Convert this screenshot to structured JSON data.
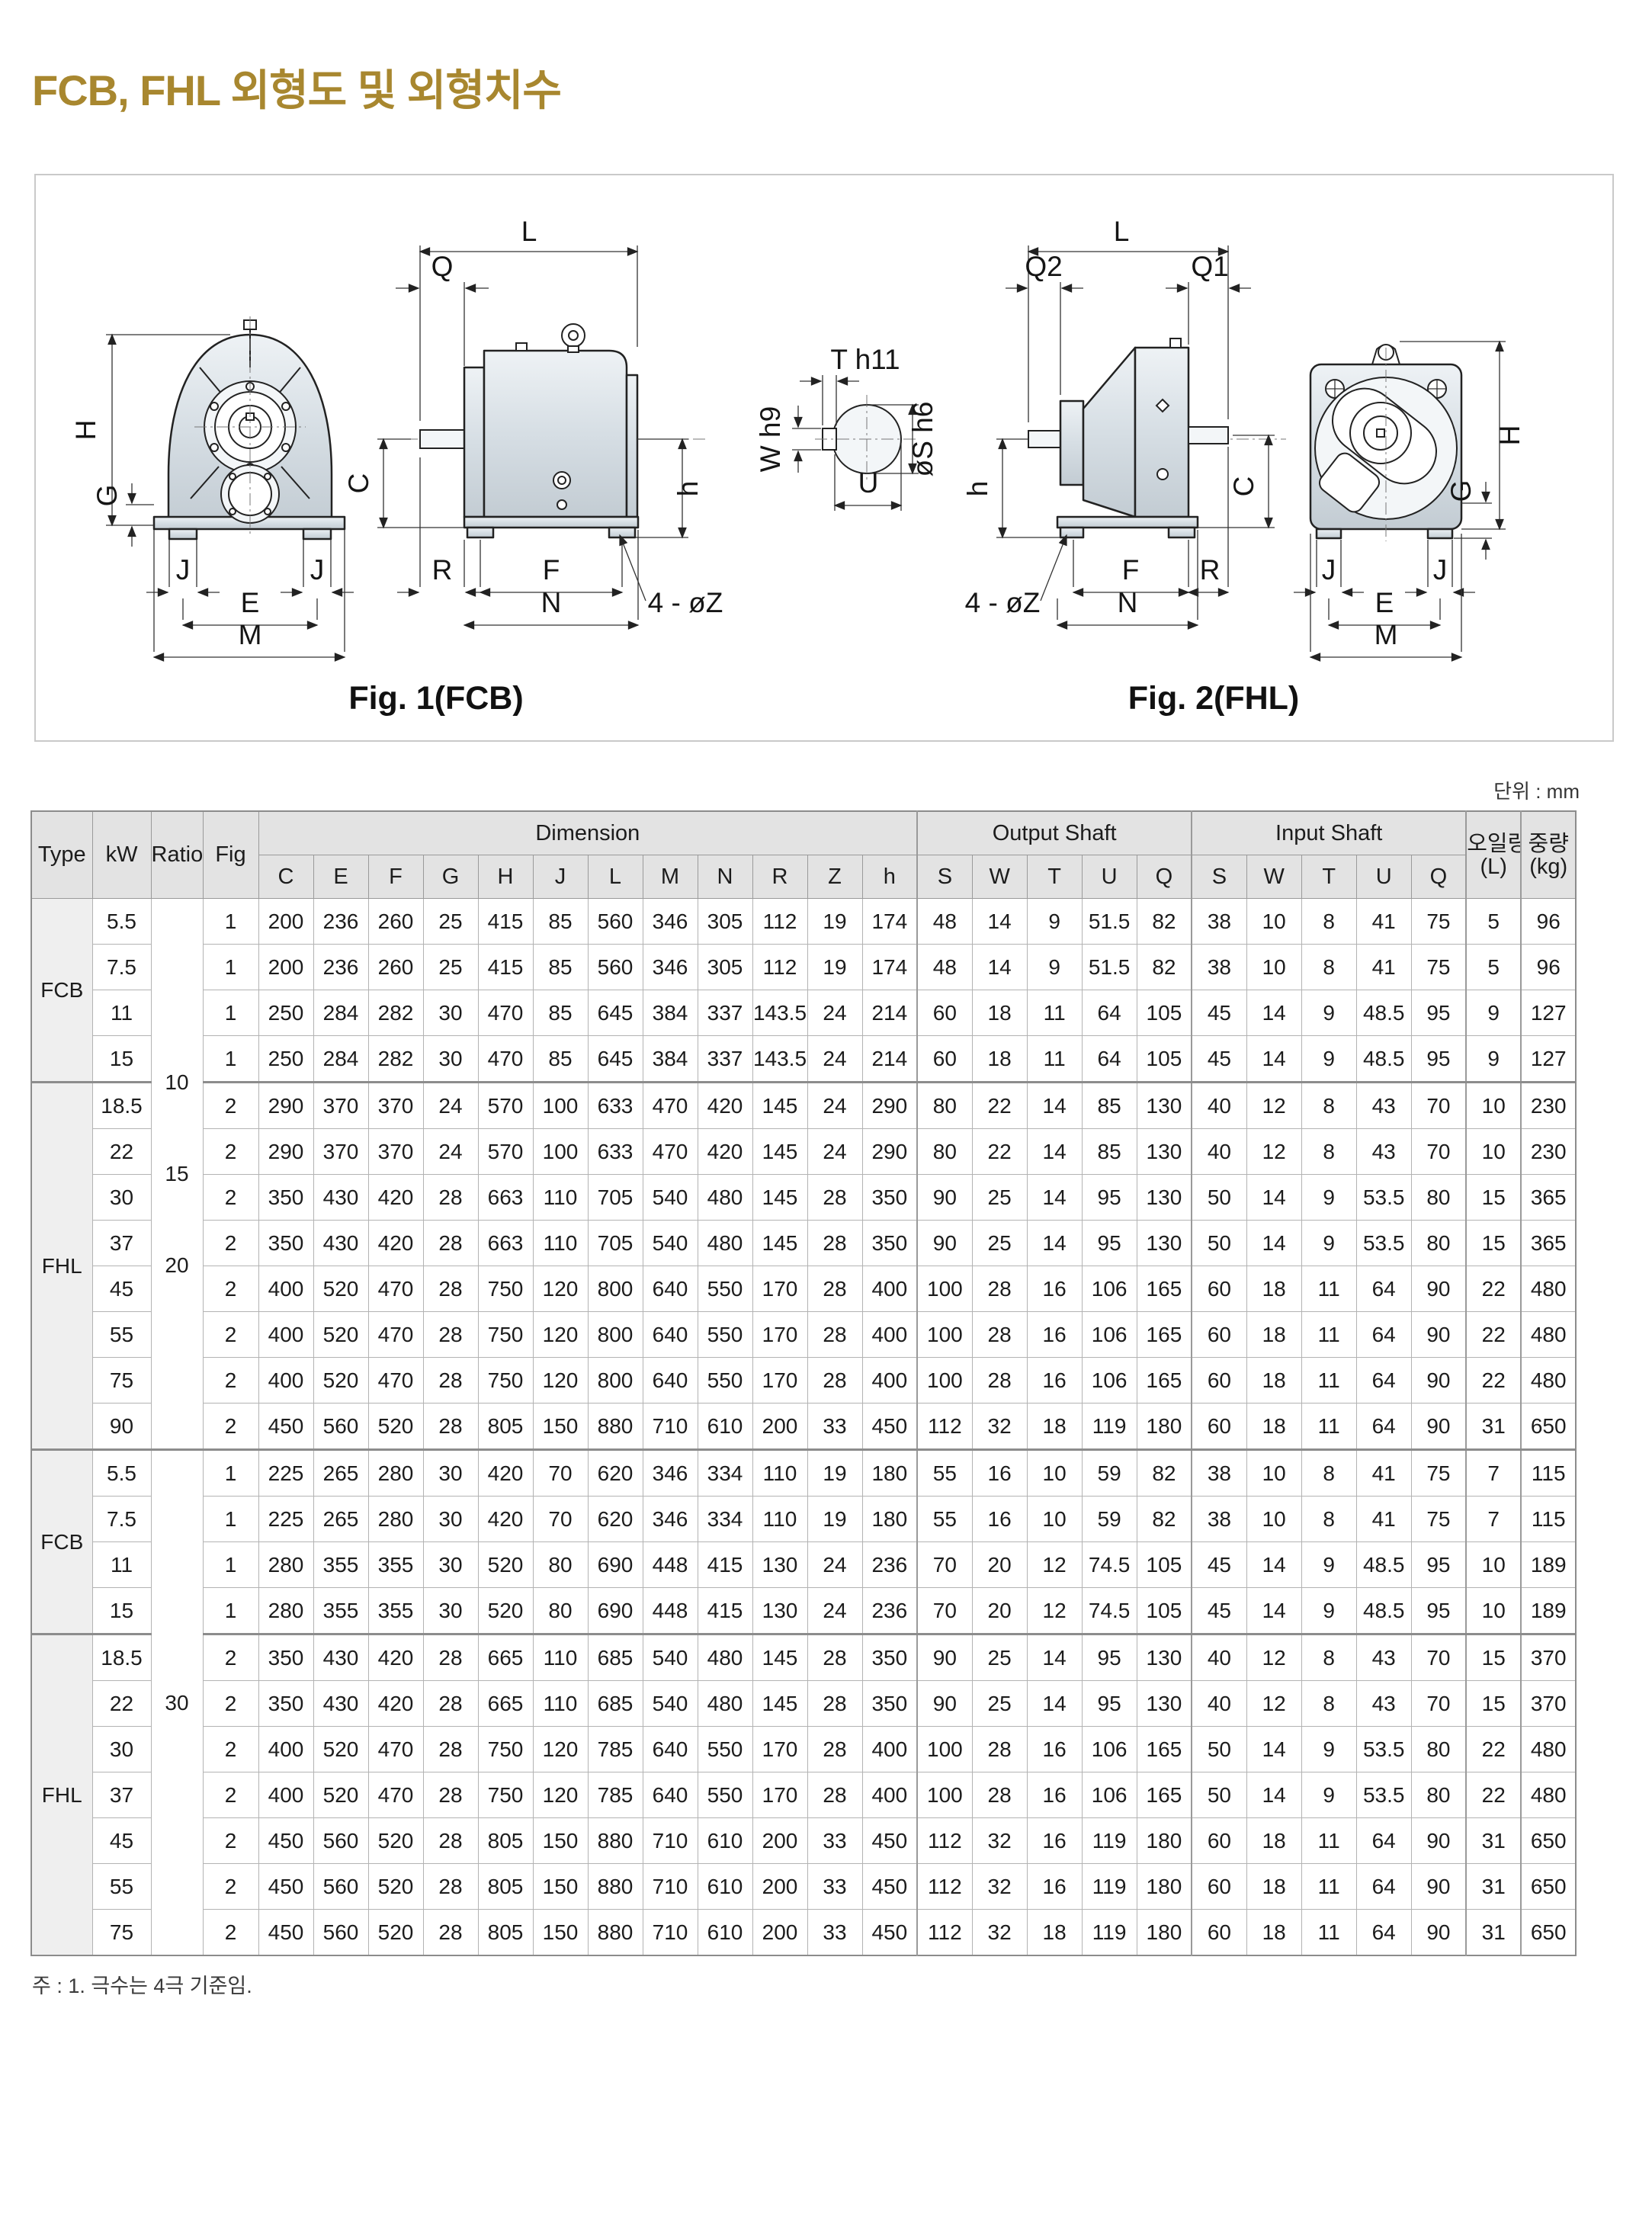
{
  "page": {
    "title": "FCB, FHL 외형도 및 외형치수",
    "unit_note": "단위 : mm",
    "footnote": "주 : 1. 극수는 4극 기준임."
  },
  "figures": {
    "fig1": {
      "caption": "Fig. 1(FCB)",
      "labels": {
        "H": "H",
        "G": "G",
        "J": "J",
        "E": "E",
        "M": "M",
        "L": "L",
        "Q": "Q",
        "C": "C",
        "h": "h",
        "R": "R",
        "F": "F",
        "N": "N",
        "holes": "4 - øZ"
      }
    },
    "shaft_detail": {
      "T": "T h11",
      "W": "W h9",
      "S": "øS h6",
      "U": "U"
    },
    "fig2": {
      "caption": "Fig. 2(FHL)",
      "labels": {
        "L": "L",
        "Q2": "Q2",
        "Q1": "Q1",
        "C": "C",
        "h": "h",
        "R": "R",
        "F": "F",
        "N": "N",
        "H": "H",
        "G": "G",
        "J": "J",
        "E": "E",
        "M": "M",
        "holes": "4 - øZ"
      }
    }
  },
  "table": {
    "headers": {
      "type": "Type",
      "kw": "kW",
      "ratio": "Ratio",
      "fig": "Fig",
      "dimension_group": "Dimension",
      "output_group": "Output Shaft",
      "input_group": "Input Shaft",
      "dim_cols": [
        "C",
        "E",
        "F",
        "G",
        "H",
        "J",
        "L",
        "M",
        "N",
        "R",
        "Z",
        "h"
      ],
      "output_cols": [
        "S",
        "W",
        "T",
        "U",
        "Q"
      ],
      "input_cols": [
        "S",
        "W",
        "T",
        "U",
        "Q"
      ],
      "oil": {
        "line1": "오일량",
        "line2": "(L)"
      },
      "weight": {
        "line1": "중량",
        "line2": "(kg)"
      }
    },
    "type_groups": [
      {
        "label": "FCB",
        "rows": 4
      },
      {
        "label": "FHL",
        "rows": 8
      },
      {
        "label": "FCB",
        "rows": 4
      },
      {
        "label": "FHL",
        "rows": 7
      }
    ],
    "ratio_groups": [
      {
        "lines": [
          "10",
          "15",
          "20"
        ],
        "rows": 12
      },
      {
        "lines": [
          "30"
        ],
        "rows": 11
      }
    ],
    "section_breaks": [
      4,
      12,
      16
    ],
    "rows": [
      {
        "kw": "5.5",
        "fig": "1",
        "values": [
          "200",
          "236",
          "260",
          "25",
          "415",
          "85",
          "560",
          "346",
          "305",
          "112",
          "19",
          "174",
          "48",
          "14",
          "9",
          "51.5",
          "82",
          "38",
          "10",
          "8",
          "41",
          "75",
          "5",
          "96"
        ]
      },
      {
        "kw": "7.5",
        "fig": "1",
        "values": [
          "200",
          "236",
          "260",
          "25",
          "415",
          "85",
          "560",
          "346",
          "305",
          "112",
          "19",
          "174",
          "48",
          "14",
          "9",
          "51.5",
          "82",
          "38",
          "10",
          "8",
          "41",
          "75",
          "5",
          "96"
        ]
      },
      {
        "kw": "11",
        "fig": "1",
        "values": [
          "250",
          "284",
          "282",
          "30",
          "470",
          "85",
          "645",
          "384",
          "337",
          "143.5",
          "24",
          "214",
          "60",
          "18",
          "11",
          "64",
          "105",
          "45",
          "14",
          "9",
          "48.5",
          "95",
          "9",
          "127"
        ]
      },
      {
        "kw": "15",
        "fig": "1",
        "values": [
          "250",
          "284",
          "282",
          "30",
          "470",
          "85",
          "645",
          "384",
          "337",
          "143.5",
          "24",
          "214",
          "60",
          "18",
          "11",
          "64",
          "105",
          "45",
          "14",
          "9",
          "48.5",
          "95",
          "9",
          "127"
        ]
      },
      {
        "kw": "18.5",
        "fig": "2",
        "values": [
          "290",
          "370",
          "370",
          "24",
          "570",
          "100",
          "633",
          "470",
          "420",
          "145",
          "24",
          "290",
          "80",
          "22",
          "14",
          "85",
          "130",
          "40",
          "12",
          "8",
          "43",
          "70",
          "10",
          "230"
        ]
      },
      {
        "kw": "22",
        "fig": "2",
        "values": [
          "290",
          "370",
          "370",
          "24",
          "570",
          "100",
          "633",
          "470",
          "420",
          "145",
          "24",
          "290",
          "80",
          "22",
          "14",
          "85",
          "130",
          "40",
          "12",
          "8",
          "43",
          "70",
          "10",
          "230"
        ]
      },
      {
        "kw": "30",
        "fig": "2",
        "values": [
          "350",
          "430",
          "420",
          "28",
          "663",
          "110",
          "705",
          "540",
          "480",
          "145",
          "28",
          "350",
          "90",
          "25",
          "14",
          "95",
          "130",
          "50",
          "14",
          "9",
          "53.5",
          "80",
          "15",
          "365"
        ]
      },
      {
        "kw": "37",
        "fig": "2",
        "values": [
          "350",
          "430",
          "420",
          "28",
          "663",
          "110",
          "705",
          "540",
          "480",
          "145",
          "28",
          "350",
          "90",
          "25",
          "14",
          "95",
          "130",
          "50",
          "14",
          "9",
          "53.5",
          "80",
          "15",
          "365"
        ]
      },
      {
        "kw": "45",
        "fig": "2",
        "values": [
          "400",
          "520",
          "470",
          "28",
          "750",
          "120",
          "800",
          "640",
          "550",
          "170",
          "28",
          "400",
          "100",
          "28",
          "16",
          "106",
          "165",
          "60",
          "18",
          "11",
          "64",
          "90",
          "22",
          "480"
        ]
      },
      {
        "kw": "55",
        "fig": "2",
        "values": [
          "400",
          "520",
          "470",
          "28",
          "750",
          "120",
          "800",
          "640",
          "550",
          "170",
          "28",
          "400",
          "100",
          "28",
          "16",
          "106",
          "165",
          "60",
          "18",
          "11",
          "64",
          "90",
          "22",
          "480"
        ]
      },
      {
        "kw": "75",
        "fig": "2",
        "values": [
          "400",
          "520",
          "470",
          "28",
          "750",
          "120",
          "800",
          "640",
          "550",
          "170",
          "28",
          "400",
          "100",
          "28",
          "16",
          "106",
          "165",
          "60",
          "18",
          "11",
          "64",
          "90",
          "22",
          "480"
        ]
      },
      {
        "kw": "90",
        "fig": "2",
        "values": [
          "450",
          "560",
          "520",
          "28",
          "805",
          "150",
          "880",
          "710",
          "610",
          "200",
          "33",
          "450",
          "112",
          "32",
          "18",
          "119",
          "180",
          "60",
          "18",
          "11",
          "64",
          "90",
          "31",
          "650"
        ]
      },
      {
        "kw": "5.5",
        "fig": "1",
        "values": [
          "225",
          "265",
          "280",
          "30",
          "420",
          "70",
          "620",
          "346",
          "334",
          "110",
          "19",
          "180",
          "55",
          "16",
          "10",
          "59",
          "82",
          "38",
          "10",
          "8",
          "41",
          "75",
          "7",
          "115"
        ]
      },
      {
        "kw": "7.5",
        "fig": "1",
        "values": [
          "225",
          "265",
          "280",
          "30",
          "420",
          "70",
          "620",
          "346",
          "334",
          "110",
          "19",
          "180",
          "55",
          "16",
          "10",
          "59",
          "82",
          "38",
          "10",
          "8",
          "41",
          "75",
          "7",
          "115"
        ]
      },
      {
        "kw": "11",
        "fig": "1",
        "values": [
          "280",
          "355",
          "355",
          "30",
          "520",
          "80",
          "690",
          "448",
          "415",
          "130",
          "24",
          "236",
          "70",
          "20",
          "12",
          "74.5",
          "105",
          "45",
          "14",
          "9",
          "48.5",
          "95",
          "10",
          "189"
        ]
      },
      {
        "kw": "15",
        "fig": "1",
        "values": [
          "280",
          "355",
          "355",
          "30",
          "520",
          "80",
          "690",
          "448",
          "415",
          "130",
          "24",
          "236",
          "70",
          "20",
          "12",
          "74.5",
          "105",
          "45",
          "14",
          "9",
          "48.5",
          "95",
          "10",
          "189"
        ]
      },
      {
        "kw": "18.5",
        "fig": "2",
        "values": [
          "350",
          "430",
          "420",
          "28",
          "665",
          "110",
          "685",
          "540",
          "480",
          "145",
          "28",
          "350",
          "90",
          "25",
          "14",
          "95",
          "130",
          "40",
          "12",
          "8",
          "43",
          "70",
          "15",
          "370"
        ]
      },
      {
        "kw": "22",
        "fig": "2",
        "values": [
          "350",
          "430",
          "420",
          "28",
          "665",
          "110",
          "685",
          "540",
          "480",
          "145",
          "28",
          "350",
          "90",
          "25",
          "14",
          "95",
          "130",
          "40",
          "12",
          "8",
          "43",
          "70",
          "15",
          "370"
        ]
      },
      {
        "kw": "30",
        "fig": "2",
        "values": [
          "400",
          "520",
          "470",
          "28",
          "750",
          "120",
          "785",
          "640",
          "550",
          "170",
          "28",
          "400",
          "100",
          "28",
          "16",
          "106",
          "165",
          "50",
          "14",
          "9",
          "53.5",
          "80",
          "22",
          "480"
        ]
      },
      {
        "kw": "37",
        "fig": "2",
        "values": [
          "400",
          "520",
          "470",
          "28",
          "750",
          "120",
          "785",
          "640",
          "550",
          "170",
          "28",
          "400",
          "100",
          "28",
          "16",
          "106",
          "165",
          "50",
          "14",
          "9",
          "53.5",
          "80",
          "22",
          "480"
        ]
      },
      {
        "kw": "45",
        "fig": "2",
        "values": [
          "450",
          "560",
          "520",
          "28",
          "805",
          "150",
          "880",
          "710",
          "610",
          "200",
          "33",
          "450",
          "112",
          "32",
          "16",
          "119",
          "180",
          "60",
          "18",
          "11",
          "64",
          "90",
          "31",
          "650"
        ]
      },
      {
        "kw": "55",
        "fig": "2",
        "values": [
          "450",
          "560",
          "520",
          "28",
          "805",
          "150",
          "880",
          "710",
          "610",
          "200",
          "33",
          "450",
          "112",
          "32",
          "16",
          "119",
          "180",
          "60",
          "18",
          "11",
          "64",
          "90",
          "31",
          "650"
        ]
      },
      {
        "kw": "75",
        "fig": "2",
        "values": [
          "450",
          "560",
          "520",
          "28",
          "805",
          "150",
          "880",
          "710",
          "610",
          "200",
          "33",
          "450",
          "112",
          "32",
          "18",
          "119",
          "180",
          "60",
          "18",
          "11",
          "64",
          "90",
          "31",
          "650"
        ]
      }
    ]
  }
}
